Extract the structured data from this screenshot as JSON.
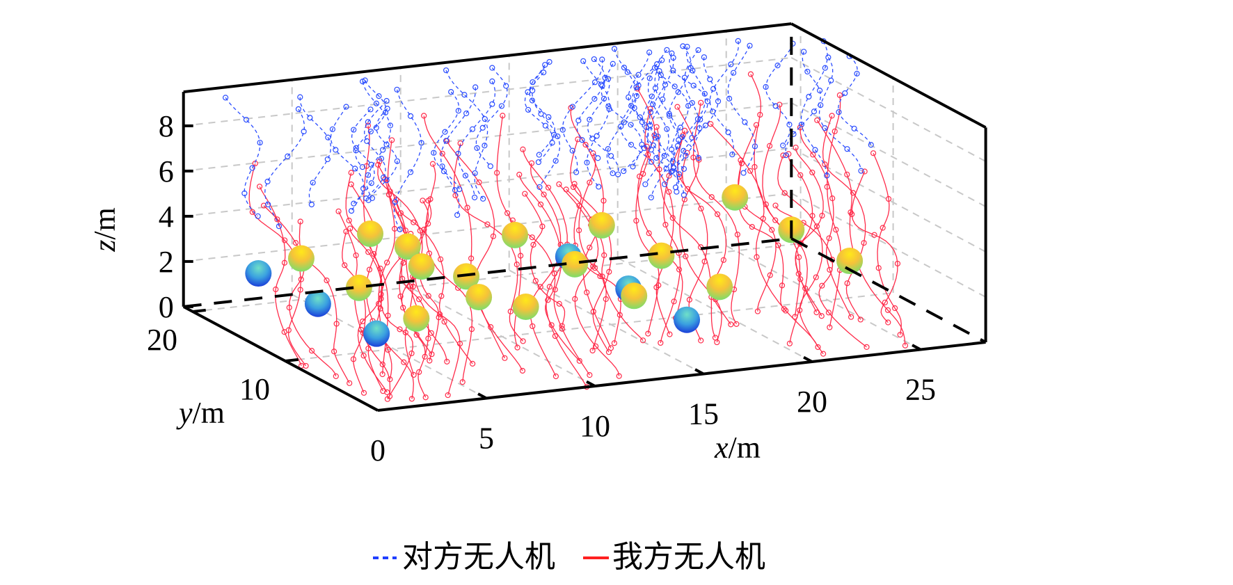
{
  "chart_data": {
    "type": "scatter3d",
    "title": "",
    "xlabel": {
      "var": "x",
      "unit": "/m"
    },
    "ylabel": {
      "var": "y",
      "unit": "/m"
    },
    "zlabel": {
      "var": "z",
      "unit": "/m"
    },
    "xlim": [
      0,
      28
    ],
    "ylim": [
      0,
      21
    ],
    "zlim": [
      0,
      9.5
    ],
    "xticks": [
      "0",
      "5",
      "10",
      "15",
      "20",
      "25"
    ],
    "yticks": [
      "10",
      "20"
    ],
    "zticks": [
      "0",
      "2",
      "4",
      "6",
      "8"
    ],
    "grid": true,
    "legend": {
      "placement": "bottom",
      "entries": [
        {
          "label": "对方无人机",
          "color": "#1f3fff",
          "style": "dashed"
        },
        {
          "label": "我方无人机",
          "color": "#ff2020",
          "style": "solid"
        }
      ]
    },
    "trajectories": {
      "enemy_count": 45,
      "own_count": 60,
      "enemy_color": "#2b4dff",
      "own_color": "#ff2b4a"
    },
    "obstacles": [
      {
        "x": 2.0,
        "y": 17.6,
        "z": 2,
        "type": "blue"
      },
      {
        "x": 4.7,
        "y": 19.3,
        "z": 2,
        "type": "yellow"
      },
      {
        "x": 2.1,
        "y": 11.4,
        "z": 2,
        "type": "blue"
      },
      {
        "x": 8.6,
        "y": 21.0,
        "z": 2.3,
        "type": "yellow"
      },
      {
        "x": 2.2,
        "y": 5.3,
        "z": 2,
        "type": "blue"
      },
      {
        "x": 4.8,
        "y": 13.3,
        "z": 2,
        "type": "yellow"
      },
      {
        "x": 9.6,
        "y": 19.3,
        "z": 2,
        "type": "yellow"
      },
      {
        "x": 8.7,
        "y": 15.7,
        "z": 2,
        "type": "yellow"
      },
      {
        "x": 4.8,
        "y": 7.1,
        "z": 2,
        "type": "yellow"
      },
      {
        "x": 9.7,
        "y": 13.2,
        "z": 2,
        "type": "yellow"
      },
      {
        "x": 8.7,
        "y": 9.5,
        "z": 2,
        "type": "yellow"
      },
      {
        "x": 14.5,
        "y": 19.2,
        "z": 2,
        "type": "yellow"
      },
      {
        "x": 9.8,
        "y": 7.0,
        "z": 2,
        "type": "yellow"
      },
      {
        "x": 15.0,
        "y": 14.6,
        "z": 2,
        "type": "blue"
      },
      {
        "x": 14.7,
        "y": 13.2,
        "z": 2,
        "type": "yellow"
      },
      {
        "x": 18.5,
        "y": 19.2,
        "z": 2,
        "type": "yellow"
      },
      {
        "x": 15.0,
        "y": 8.1,
        "z": 2,
        "type": "blue"
      },
      {
        "x": 14.7,
        "y": 6.8,
        "z": 2,
        "type": "yellow"
      },
      {
        "x": 18.6,
        "y": 13.0,
        "z": 2,
        "type": "yellow"
      },
      {
        "x": 15.0,
        "y": 1.8,
        "z": 2,
        "type": "blue"
      },
      {
        "x": 18.6,
        "y": 6.7,
        "z": 2,
        "type": "yellow"
      },
      {
        "x": 25.4,
        "y": 21.0,
        "z": 2.1,
        "type": "yellow"
      },
      {
        "x": 25.4,
        "y": 14.9,
        "z": 2,
        "type": "yellow"
      },
      {
        "x": 25.4,
        "y": 8.6,
        "z": 2,
        "type": "yellow"
      }
    ]
  }
}
